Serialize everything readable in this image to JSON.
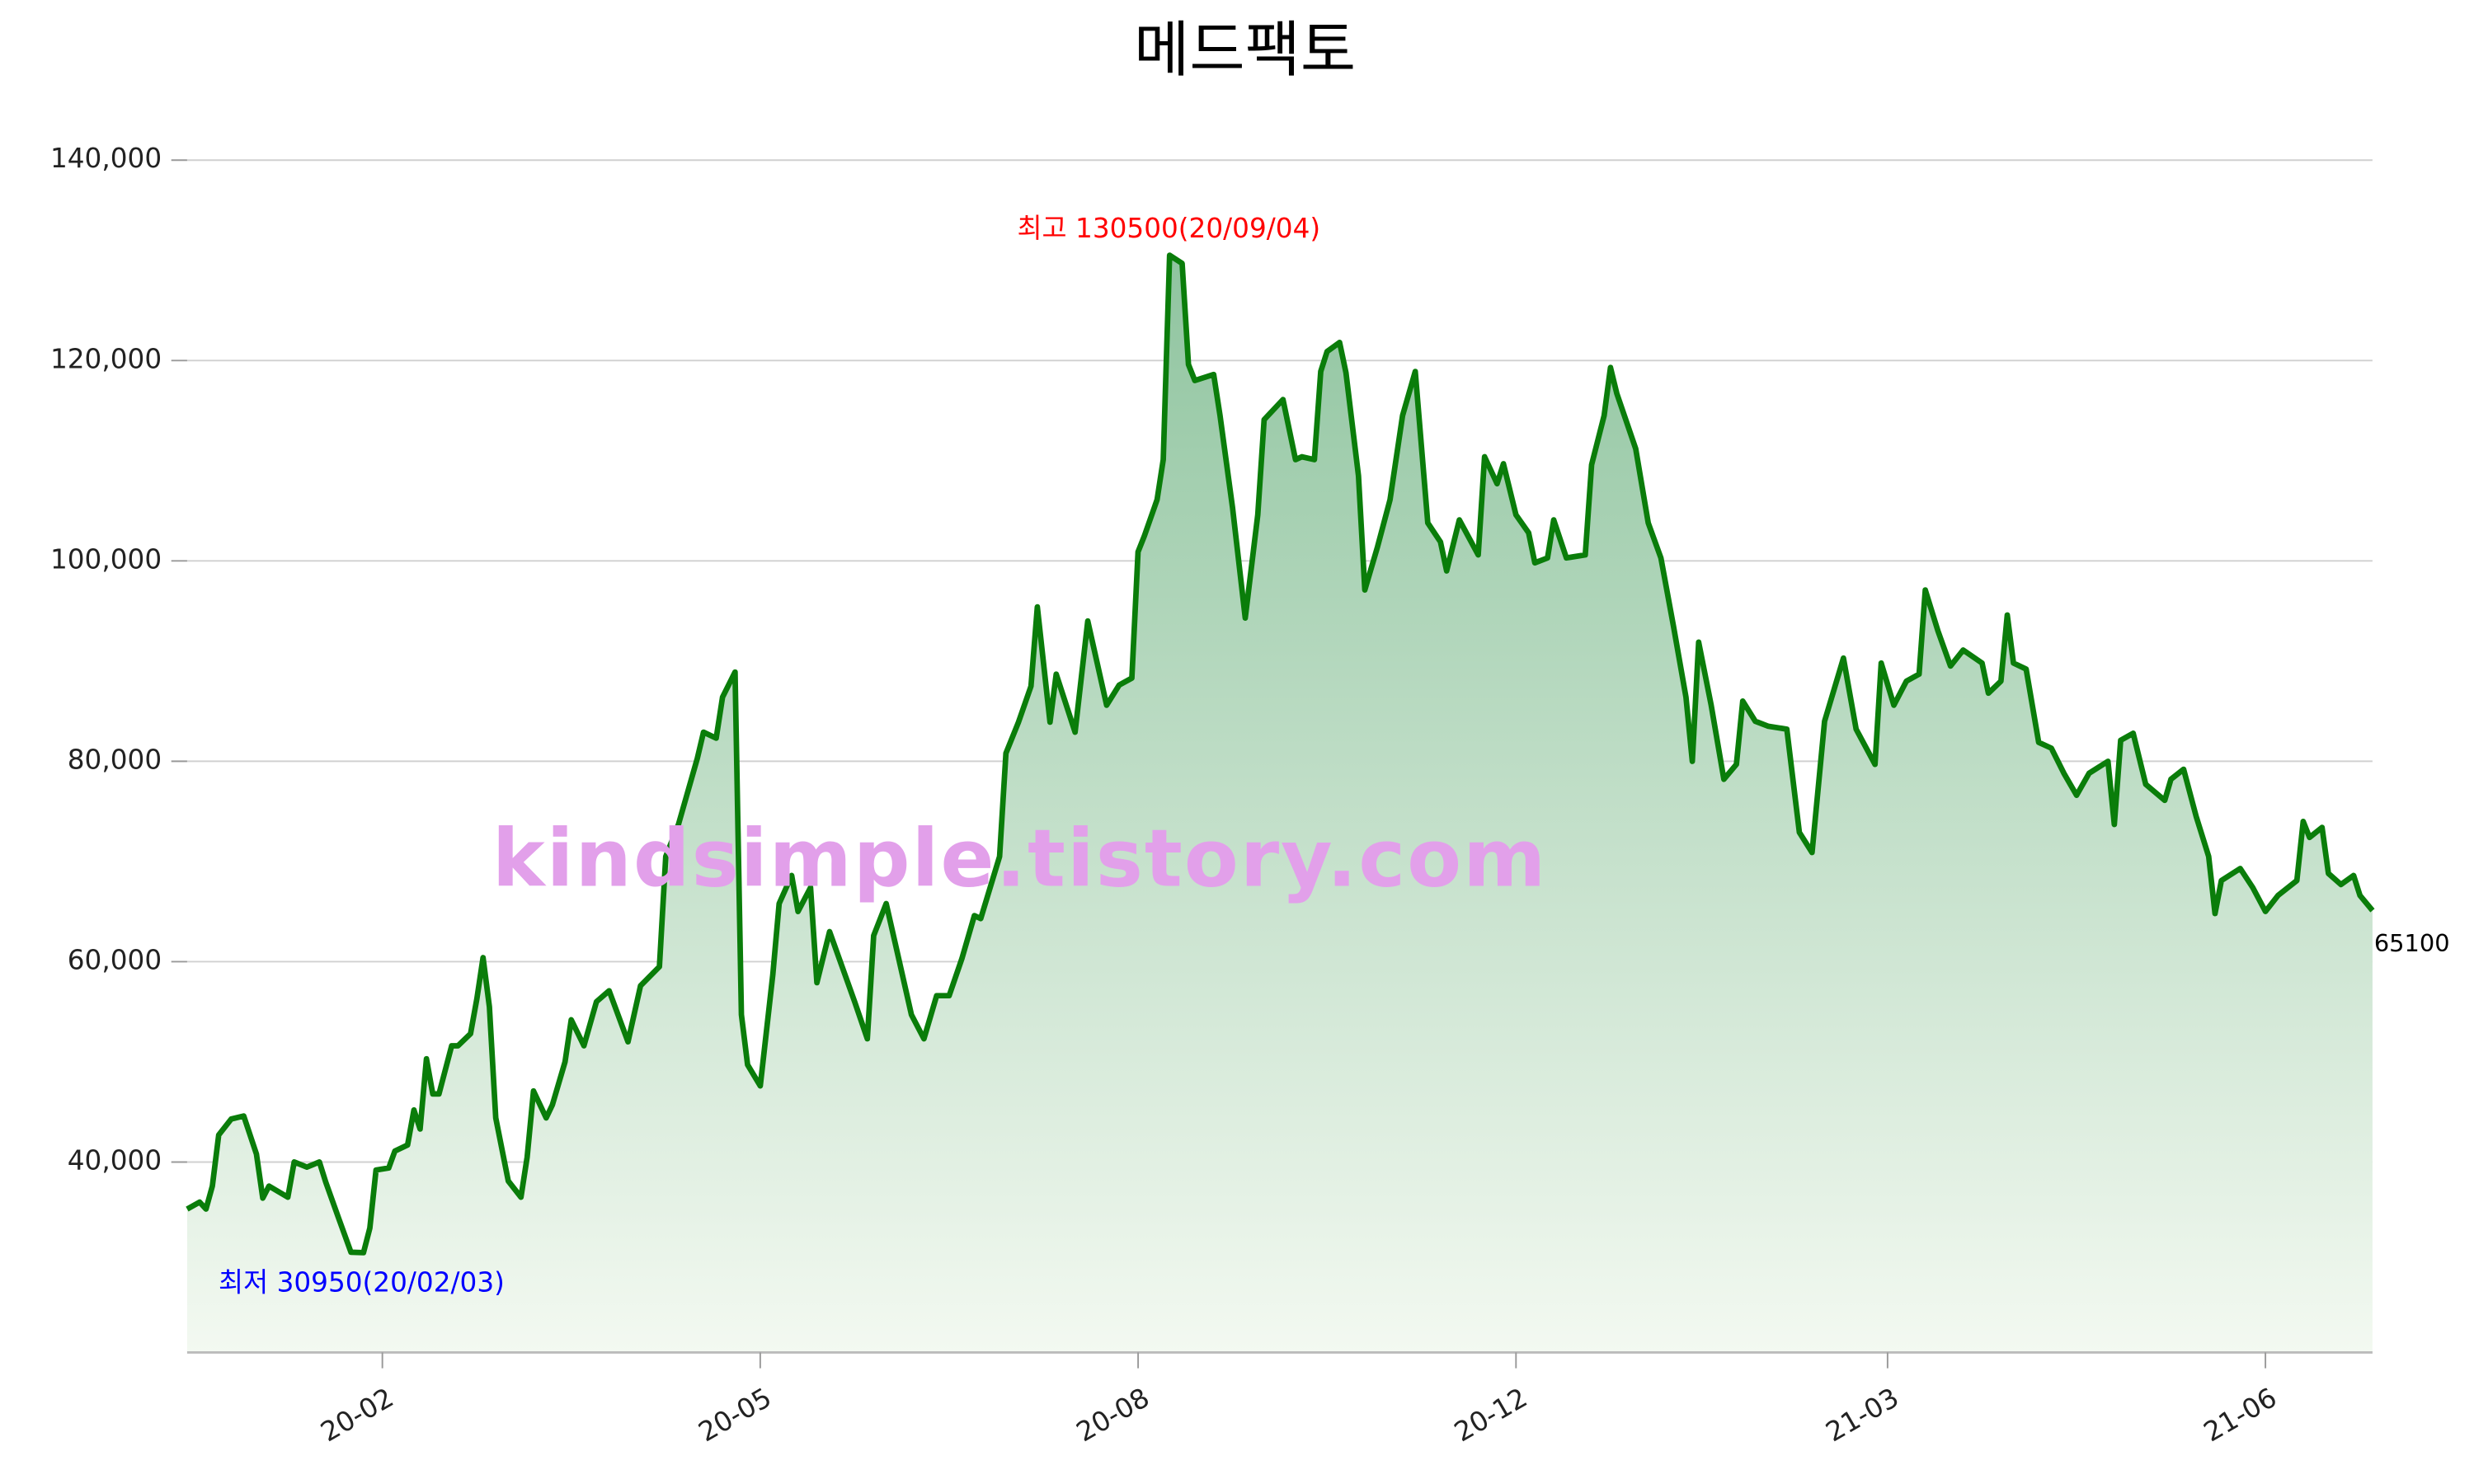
{
  "chart_data": {
    "type": "area-line",
    "title": "메드팩토",
    "color": "#0a7d0a",
    "fill_top": "#8fc49f",
    "fill_bottom": "#f3f9f1",
    "grid": true,
    "x": [
      0,
      2,
      3,
      4,
      5,
      7,
      9,
      11,
      12,
      13,
      16,
      17,
      19,
      21,
      22,
      24,
      26,
      28,
      29,
      30,
      32,
      33,
      35,
      36,
      37,
      38,
      39,
      40,
      42,
      43,
      45,
      46,
      47,
      48,
      49,
      51,
      53,
      54,
      55,
      57,
      58,
      60,
      61,
      63,
      65,
      67,
      70,
      72,
      75,
      76,
      78,
      81,
      82,
      84,
      85,
      87,
      88,
      89,
      91,
      93,
      94,
      96,
      97,
      99,
      100,
      102,
      104,
      106,
      108,
      109,
      111,
      113,
      115,
      117,
      119,
      121,
      123,
      125,
      126,
      129,
      130,
      132,
      134,
      135,
      137,
      138,
      141,
      143,
      146,
      148,
      150,
      151,
      152,
      154,
      155,
      156,
      158,
      159,
      160,
      163,
      164,
      166,
      168,
      170,
      171,
      174,
      176,
      177,
      179,
      180,
      181,
      183,
      184,
      186,
      187,
      189,
      191,
      193,
      195,
      197,
      199,
      200,
      202,
      205,
      206,
      208,
      209,
      211,
      213,
      214,
      216,
      217,
      219,
      222,
      223,
      225,
      226,
      227,
      230,
      232,
      234,
      236,
      238,
      239,
      240,
      242,
      244,
      246,
      247,
      249,
      251,
      254,
      256,
      258,
      260,
      263,
      265,
      268,
      269,
      271,
      273,
      275,
      276,
      278,
      280,
      282,
      285,
      286,
      288,
      289,
      290,
      292,
      294,
      296,
      298,
      300,
      302,
      305,
      306,
      307,
      309,
      311,
      314,
      315,
      317,
      319,
      321,
      322,
      323,
      326,
      328,
      330,
      332,
      335,
      336,
      337,
      339,
      340,
      342,
      344,
      345,
      347
    ],
    "values": [
      35300,
      36000,
      35300,
      37600,
      42700,
      44300,
      44600,
      40800,
      36400,
      37600,
      36500,
      40000,
      39500,
      40000,
      38000,
      34500,
      31000,
      30950,
      33400,
      39200,
      39400,
      41100,
      41700,
      45200,
      43300,
      50300,
      46800,
      46800,
      51600,
      51600,
      52800,
      56300,
      60400,
      55500,
      44400,
      38100,
      36500,
      40500,
      47100,
      44400,
      45700,
      50000,
      54200,
      51600,
      56000,
      57100,
      52000,
      57600,
      59500,
      70500,
      73700,
      80300,
      82900,
      82300,
      86400,
      88900,
      54700,
      49700,
      47600,
      58700,
      65800,
      68600,
      65000,
      67400,
      57900,
      63000,
      59500,
      56000,
      52300,
      62600,
      65800,
      60300,
      54700,
      52300,
      56600,
      56600,
      60300,
      64600,
      64300,
      70500,
      80800,
      83900,
      87500,
      95400,
      83900,
      88700,
      82900,
      94000,
      85600,
      87600,
      88300,
      100900,
      102500,
      106100,
      110100,
      130500,
      129700,
      119600,
      118000,
      118600,
      114500,
      105300,
      94300,
      104600,
      114100,
      116100,
      110100,
      110400,
      110100,
      118900,
      120900,
      121800,
      118800,
      108500,
      97100,
      101400,
      106100,
      114500,
      118900,
      103800,
      101900,
      99000,
      104100,
      100600,
      110400,
      107700,
      109700,
      104600,
      102800,
      99800,
      100300,
      104100,
      100300,
      100600,
      109600,
      114500,
      119300,
      116700,
      111200,
      103800,
      100300,
      93500,
      86400,
      80000,
      91900,
      85600,
      78200,
      79700,
      86000,
      84000,
      83500,
      83200,
      72900,
      70900,
      84000,
      90300,
      83200,
      79700,
      89800,
      85600,
      88000,
      88700,
      97100,
      93000,
      89500,
      91100,
      89800,
      86800,
      88000,
      94600,
      89800,
      89200,
      81900,
      81300,
      78800,
      76600,
      78800,
      80000,
      73700,
      82100,
      82800,
      77700,
      76100,
      78200,
      79200,
      74500,
      70500,
      64800,
      68100,
      69300,
      67400,
      65000,
      66600,
      68100,
      74000,
      72400,
      73400,
      68800,
      67700,
      68600,
      66600,
      65100
    ],
    "xlim": [
      0,
      347
    ],
    "xticks": [
      {
        "value": 31,
        "label": "20-02"
      },
      {
        "value": 91,
        "label": "20-05"
      },
      {
        "value": 151,
        "label": "20-08"
      },
      {
        "value": 211,
        "label": "20-12"
      },
      {
        "value": 270,
        "label": "21-03"
      },
      {
        "value": 330,
        "label": "21-06"
      }
    ],
    "ylim": [
      21000,
      140000
    ],
    "yticks": [
      {
        "value": 40000,
        "label": "40,000"
      },
      {
        "value": 60000,
        "label": "60,000"
      },
      {
        "value": 80000,
        "label": "80,000"
      },
      {
        "value": 100000,
        "label": "100,000"
      },
      {
        "value": 120000,
        "label": "120,000"
      },
      {
        "value": 140000,
        "label": "140,000"
      }
    ],
    "annotations": [
      {
        "text": "최고 130500(20/09/04)",
        "color": "#ff0000"
      },
      {
        "text": "최저 30950(20/02/03)",
        "color": "#0000ff"
      },
      {
        "text": "65100",
        "color": "#000000"
      }
    ],
    "watermark": {
      "text": "kindsimple.tistory.com",
      "color": "#e2a0ea"
    }
  }
}
